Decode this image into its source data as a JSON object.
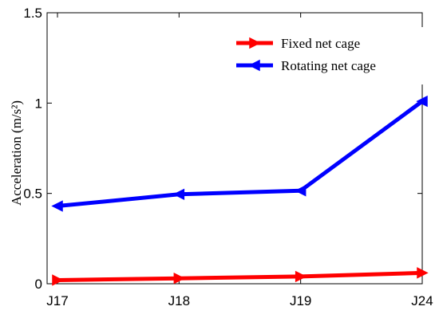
{
  "chart_data": {
    "type": "line",
    "title": "",
    "xlabel": "",
    "ylabel": "Acceleration (m/s²)",
    "categories": [
      "J17",
      "J18",
      "J19",
      "J24"
    ],
    "ylim": [
      0,
      1.5
    ],
    "yticks": [
      "0",
      "0.5",
      "1",
      "1.5"
    ],
    "grid": false,
    "legend_position": "top-right",
    "series": [
      {
        "name": "Fixed net cage",
        "color": "#ff0000",
        "marker": "right-triangle",
        "values": [
          0.02,
          0.03,
          0.04,
          0.06
        ]
      },
      {
        "name": "Rotating net cage",
        "color": "#0000ff",
        "marker": "left-triangle",
        "values": [
          0.43,
          0.495,
          0.515,
          1.01
        ]
      }
    ]
  }
}
